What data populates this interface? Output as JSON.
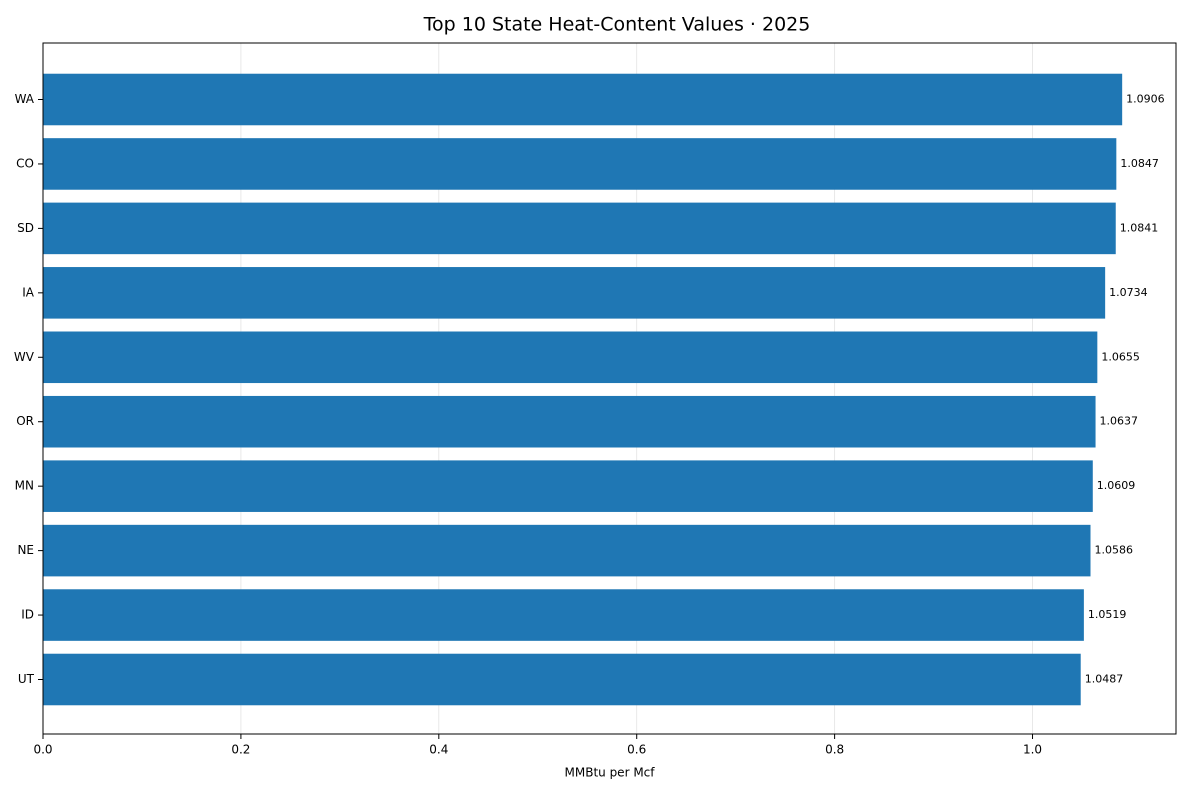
{
  "chart_data": {
    "type": "bar",
    "orientation": "horizontal",
    "title": "Top 10 State Heat-Content Values · 2025",
    "xlabel": "MMBtu per Mcf",
    "ylabel": "",
    "xlim": [
      0,
      1.145
    ],
    "xticks": [
      0,
      0.2,
      0.4,
      0.6,
      0.8,
      1.0
    ],
    "xtick_labels": [
      "0.0",
      "0.2",
      "0.4",
      "0.6",
      "0.8",
      "1.0"
    ],
    "grid": "vertical",
    "legend": "none",
    "bar_color": "#1f77b4",
    "categories": [
      "WA",
      "CO",
      "SD",
      "IA",
      "WV",
      "OR",
      "MN",
      "NE",
      "ID",
      "UT"
    ],
    "values": [
      1.0906,
      1.0847,
      1.0841,
      1.0734,
      1.0655,
      1.0637,
      1.0609,
      1.0586,
      1.0519,
      1.0487
    ],
    "value_labels": [
      "1.0906",
      "1.0847",
      "1.0841",
      "1.0734",
      "1.0655",
      "1.0637",
      "1.0609",
      "1.0586",
      "1.0519",
      "1.0487"
    ]
  }
}
